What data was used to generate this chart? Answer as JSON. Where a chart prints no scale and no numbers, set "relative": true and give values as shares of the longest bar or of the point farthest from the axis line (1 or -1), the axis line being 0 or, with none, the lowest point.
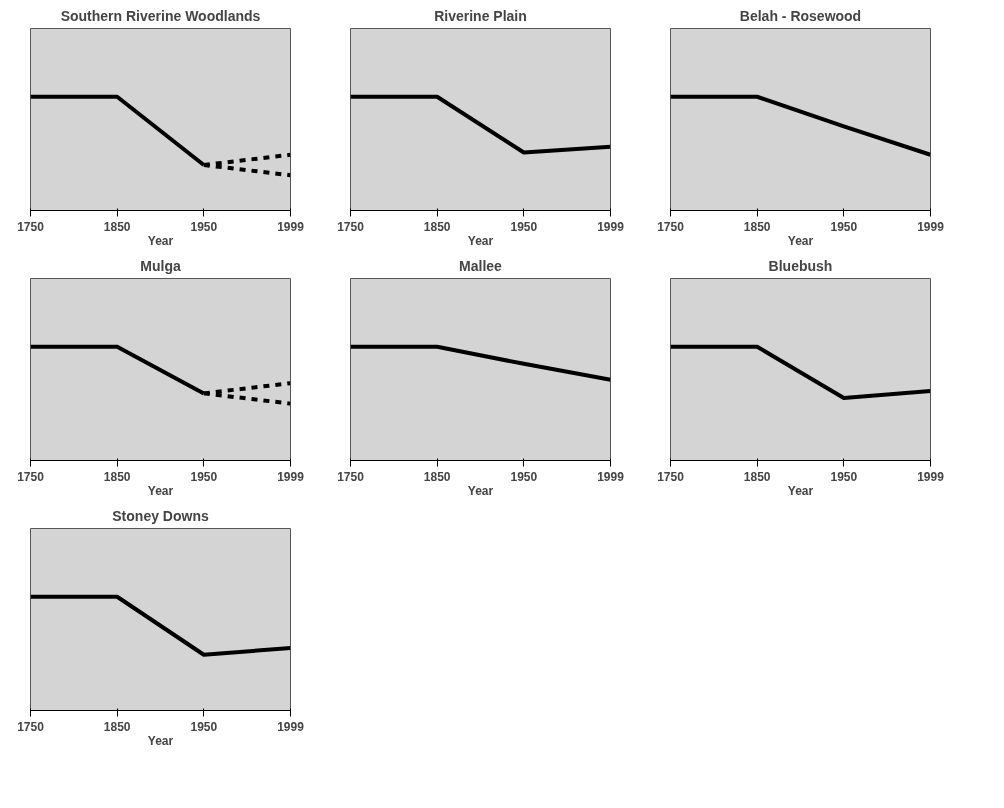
{
  "chart_data": [
    {
      "type": "line",
      "title": "Southern Riverine Woodlands",
      "xlabel": "Year",
      "categories": [
        "1750",
        "1850",
        "1950",
        "1999"
      ],
      "relative": true,
      "grid": false,
      "series": [
        {
          "color": "#000000",
          "values": [
            1,
            1,
            0.4,
            null
          ]
        },
        {
          "color": "#000000",
          "line_style": "dashed",
          "values": [
            null,
            null,
            0.4,
            0.49
          ]
        },
        {
          "color": "#000000",
          "line_style": "dashed",
          "values": [
            null,
            null,
            0.4,
            0.31
          ]
        }
      ]
    },
    {
      "type": "line",
      "title": "Riverine Plain",
      "xlabel": "Year",
      "categories": [
        "1750",
        "1850",
        "1950",
        "1999"
      ],
      "relative": true,
      "grid": false,
      "series": [
        {
          "color": "#000000",
          "values": [
            1,
            1,
            0.51,
            0.56
          ]
        }
      ]
    },
    {
      "type": "line",
      "title": "Belah - Rosewood",
      "xlabel": "Year",
      "categories": [
        "1750",
        "1850",
        "1950",
        "1999"
      ],
      "relative": true,
      "grid": false,
      "series": [
        {
          "color": "#000000",
          "values": [
            1,
            1,
            0.74,
            0.49
          ]
        }
      ]
    },
    {
      "type": "line",
      "title": "Mulga",
      "xlabel": "Year",
      "categories": [
        "1750",
        "1850",
        "1950",
        "1999"
      ],
      "relative": true,
      "grid": false,
      "series": [
        {
          "color": "#000000",
          "values": [
            1,
            1,
            0.59,
            null
          ]
        },
        {
          "color": "#000000",
          "line_style": "dashed",
          "values": [
            null,
            null,
            0.59,
            0.68
          ]
        },
        {
          "color": "#000000",
          "line_style": "dashed",
          "values": [
            null,
            null,
            0.59,
            0.5
          ]
        }
      ]
    },
    {
      "type": "line",
      "title": "Mallee",
      "xlabel": "Year",
      "categories": [
        "1750",
        "1850",
        "1950",
        "1999"
      ],
      "relative": true,
      "grid": false,
      "series": [
        {
          "color": "#000000",
          "values": [
            1,
            1,
            0.85,
            0.71
          ]
        }
      ]
    },
    {
      "type": "line",
      "title": "Bluebush",
      "xlabel": "Year",
      "categories": [
        "1750",
        "1850",
        "1950",
        "1999"
      ],
      "relative": true,
      "grid": false,
      "series": [
        {
          "color": "#000000",
          "values": [
            1,
            1,
            0.55,
            0.61
          ]
        }
      ]
    },
    {
      "type": "line",
      "title": "Stoney Downs",
      "xlabel": "Year",
      "categories": [
        "1750",
        "1850",
        "1950",
        "1999"
      ],
      "relative": true,
      "grid": false,
      "series": [
        {
          "color": "#000000",
          "values": [
            1,
            1,
            0.49,
            0.55
          ]
        }
      ]
    }
  ]
}
